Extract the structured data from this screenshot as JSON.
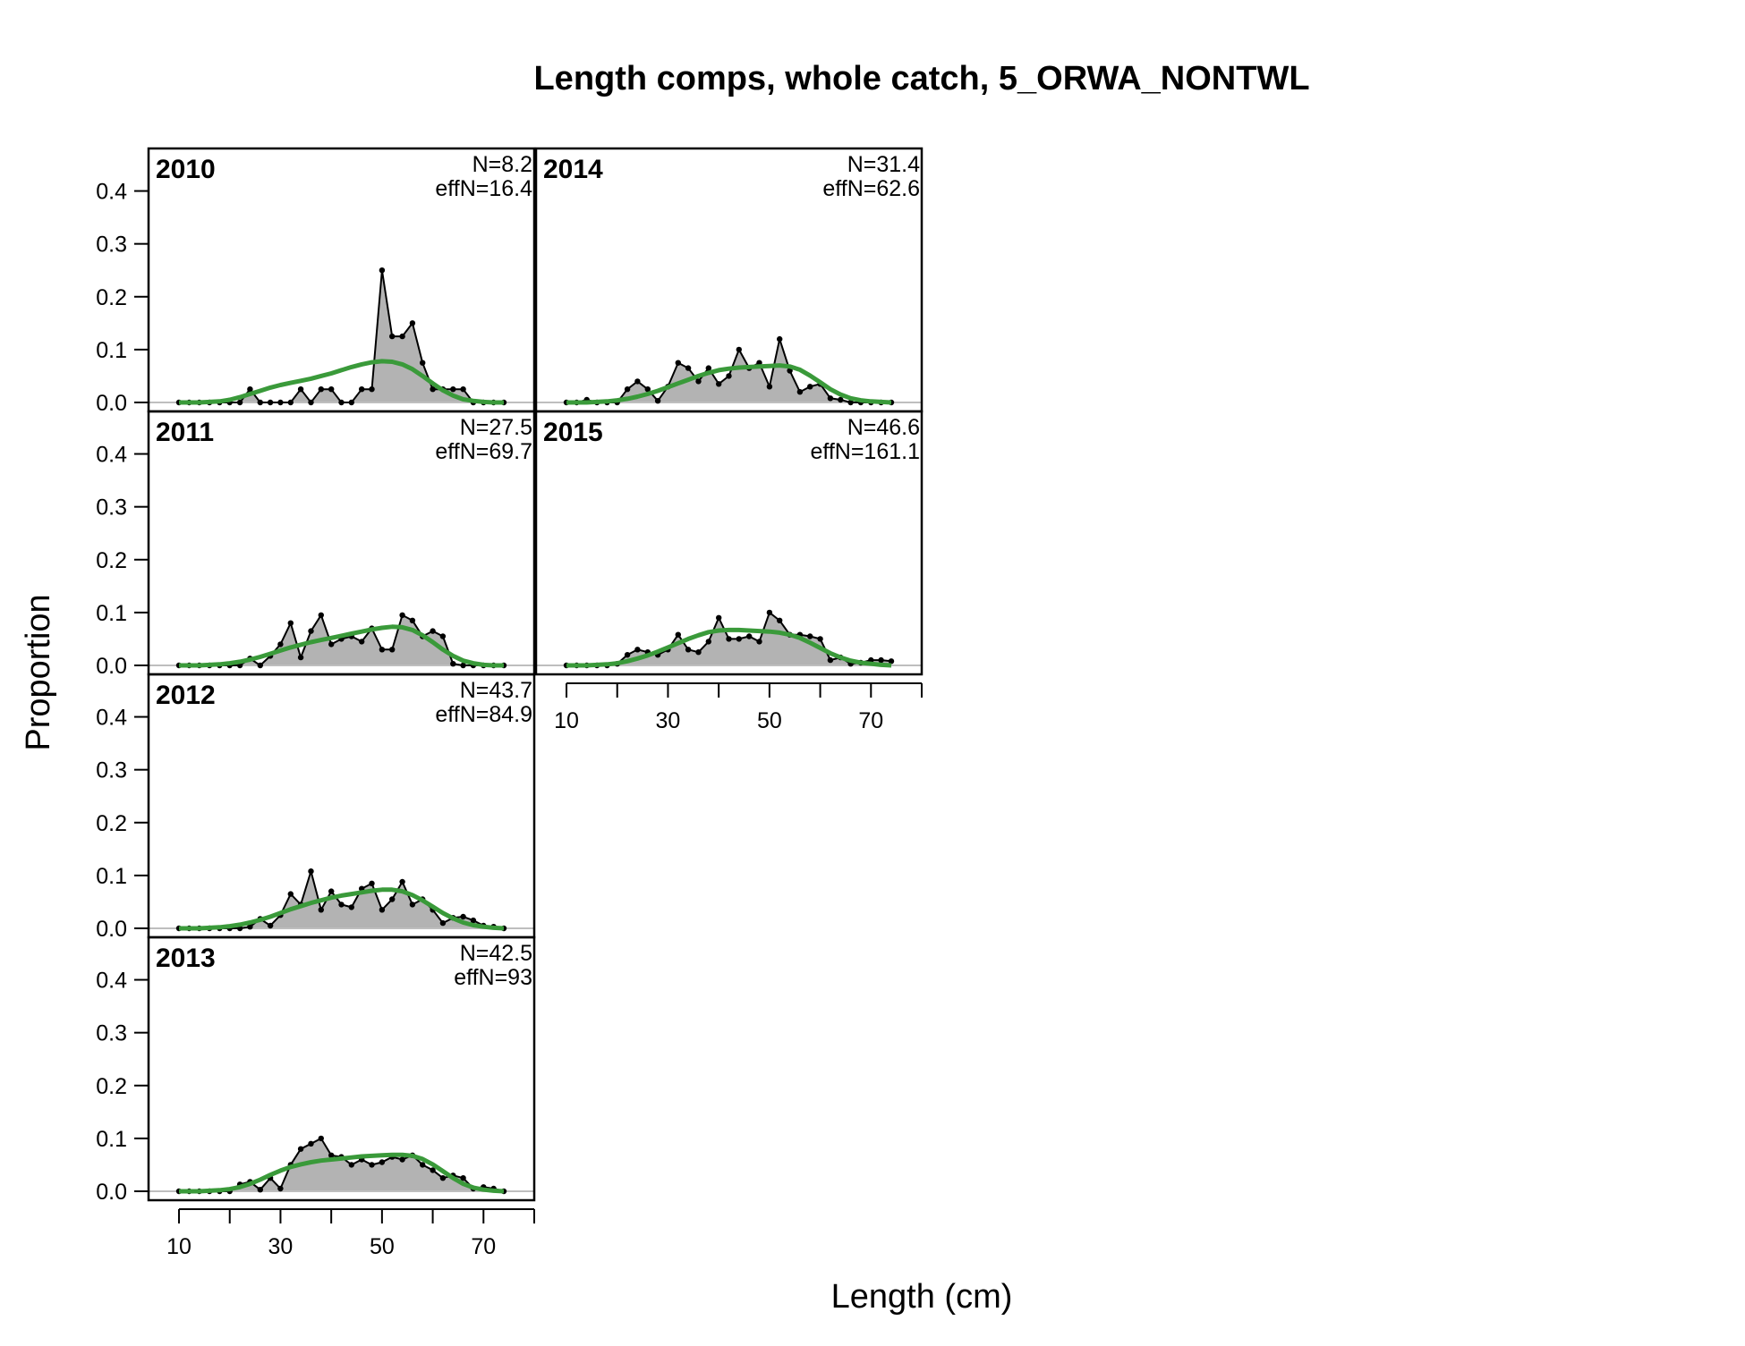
{
  "chart_data": {
    "type": "area",
    "title": "Length comps, whole catch, 5_ORWA_NONTWL",
    "xlabel": "Length (cm)",
    "ylabel": "Proportion",
    "xlim": [
      4,
      80
    ],
    "ylim": [
      0,
      0.45
    ],
    "x_ticks": [
      10,
      30,
      50,
      70
    ],
    "y_ticks": [
      "0.0",
      "0.1",
      "0.2",
      "0.3",
      "0.4"
    ],
    "colors": {
      "observed_fill": "#b3b3b3",
      "observed_line": "#000000",
      "expected_line": "#3a9a3a",
      "zero_line": "#bebebe"
    },
    "x": [
      10,
      12,
      14,
      16,
      18,
      20,
      22,
      24,
      26,
      28,
      30,
      32,
      34,
      36,
      38,
      40,
      42,
      44,
      46,
      48,
      50,
      52,
      54,
      56,
      58,
      60,
      62,
      64,
      66,
      68,
      70,
      72,
      74
    ],
    "panels": [
      {
        "year": "2010",
        "n_label": "N=8.2",
        "effn_label": "effN=16.4",
        "observed": [
          0,
          0,
          0,
          0,
          0,
          0,
          0,
          0.025,
          0,
          0,
          0,
          0,
          0.025,
          0,
          0.025,
          0.025,
          0,
          0,
          0.025,
          0.025,
          0.25,
          0.125,
          0.125,
          0.15,
          0.075,
          0.025,
          0.025,
          0.025,
          0.025,
          0,
          0,
          0,
          0
        ],
        "expected": [
          0,
          0,
          0,
          0.001,
          0.002,
          0.005,
          0.01,
          0.016,
          0.022,
          0.028,
          0.033,
          0.037,
          0.041,
          0.045,
          0.05,
          0.055,
          0.061,
          0.067,
          0.072,
          0.076,
          0.078,
          0.077,
          0.072,
          0.063,
          0.05,
          0.036,
          0.023,
          0.013,
          0.006,
          0.003,
          0.001,
          0,
          0
        ]
      },
      {
        "year": "2011",
        "n_label": "N=27.5",
        "effn_label": "effN=69.7",
        "observed": [
          0,
          0,
          0,
          0,
          0,
          0,
          0,
          0.013,
          0,
          0.018,
          0.04,
          0.08,
          0.015,
          0.065,
          0.095,
          0.04,
          0.05,
          0.055,
          0.045,
          0.07,
          0.03,
          0.03,
          0.095,
          0.085,
          0.055,
          0.065,
          0.055,
          0.003,
          0,
          0,
          0,
          0,
          0
        ],
        "expected": [
          0,
          0,
          0,
          0.001,
          0.002,
          0.004,
          0.007,
          0.011,
          0.016,
          0.022,
          0.028,
          0.034,
          0.039,
          0.044,
          0.048,
          0.052,
          0.056,
          0.06,
          0.064,
          0.068,
          0.071,
          0.073,
          0.072,
          0.067,
          0.057,
          0.044,
          0.03,
          0.018,
          0.009,
          0.004,
          0.001,
          0,
          0
        ]
      },
      {
        "year": "2012",
        "n_label": "N=43.7",
        "effn_label": "effN=84.9",
        "observed": [
          0,
          0,
          0,
          0,
          0,
          0,
          0,
          0.003,
          0.018,
          0.005,
          0.025,
          0.065,
          0.045,
          0.108,
          0.035,
          0.07,
          0.045,
          0.04,
          0.075,
          0.085,
          0.035,
          0.055,
          0.088,
          0.045,
          0.055,
          0.035,
          0.01,
          0.02,
          0.022,
          0.015,
          0.005,
          0.003,
          0
        ],
        "expected": [
          0,
          0,
          0,
          0.001,
          0.002,
          0.004,
          0.007,
          0.011,
          0.016,
          0.022,
          0.029,
          0.036,
          0.042,
          0.048,
          0.053,
          0.058,
          0.062,
          0.065,
          0.068,
          0.071,
          0.073,
          0.073,
          0.07,
          0.063,
          0.053,
          0.041,
          0.029,
          0.019,
          0.011,
          0.006,
          0.003,
          0.001,
          0
        ]
      },
      {
        "year": "2013",
        "n_label": "N=42.5",
        "effn_label": "effN=93",
        "observed": [
          0,
          0,
          0,
          0,
          0,
          0,
          0.013,
          0.018,
          0.003,
          0.025,
          0.005,
          0.05,
          0.08,
          0.09,
          0.1,
          0.068,
          0.065,
          0.05,
          0.06,
          0.05,
          0.055,
          0.065,
          0.06,
          0.068,
          0.05,
          0.04,
          0.025,
          0.03,
          0.025,
          0.005,
          0.008,
          0.005,
          0
        ],
        "expected": [
          0,
          0,
          0,
          0.001,
          0.002,
          0.004,
          0.008,
          0.014,
          0.022,
          0.031,
          0.039,
          0.046,
          0.051,
          0.055,
          0.058,
          0.06,
          0.062,
          0.064,
          0.066,
          0.067,
          0.068,
          0.069,
          0.069,
          0.067,
          0.061,
          0.051,
          0.038,
          0.025,
          0.014,
          0.007,
          0.003,
          0.001,
          0
        ]
      },
      {
        "year": "2014",
        "n_label": "N=31.4",
        "effn_label": "effN=62.6",
        "observed": [
          0,
          0,
          0.005,
          0,
          0,
          0,
          0.025,
          0.04,
          0.025,
          0.003,
          0.03,
          0.075,
          0.065,
          0.04,
          0.065,
          0.035,
          0.05,
          0.1,
          0.065,
          0.075,
          0.03,
          0.12,
          0.06,
          0.02,
          0.03,
          0.035,
          0.008,
          0.005,
          0,
          0,
          0,
          0,
          0
        ],
        "expected": [
          0,
          0,
          0,
          0.001,
          0.002,
          0.004,
          0.007,
          0.011,
          0.016,
          0.022,
          0.029,
          0.036,
          0.043,
          0.05,
          0.056,
          0.061,
          0.064,
          0.066,
          0.067,
          0.068,
          0.069,
          0.07,
          0.068,
          0.062,
          0.051,
          0.038,
          0.025,
          0.015,
          0.008,
          0.004,
          0.002,
          0.001,
          0
        ]
      },
      {
        "year": "2015",
        "n_label": "N=46.6",
        "effn_label": "effN=161.1",
        "observed": [
          0,
          0,
          0,
          0,
          0,
          0.003,
          0.02,
          0.03,
          0.025,
          0.02,
          0.03,
          0.058,
          0.03,
          0.025,
          0.045,
          0.09,
          0.05,
          0.05,
          0.055,
          0.045,
          0.1,
          0.085,
          0.058,
          0.058,
          0.055,
          0.05,
          0.01,
          0.015,
          0.003,
          0.005,
          0.01,
          0.01,
          0.008
        ],
        "expected": [
          0,
          0,
          0,
          0.001,
          0.002,
          0.004,
          0.008,
          0.013,
          0.019,
          0.026,
          0.034,
          0.042,
          0.05,
          0.057,
          0.063,
          0.066,
          0.067,
          0.067,
          0.066,
          0.065,
          0.064,
          0.062,
          0.058,
          0.052,
          0.043,
          0.033,
          0.023,
          0.015,
          0.009,
          0.005,
          0.003,
          0.001,
          0
        ]
      }
    ]
  }
}
